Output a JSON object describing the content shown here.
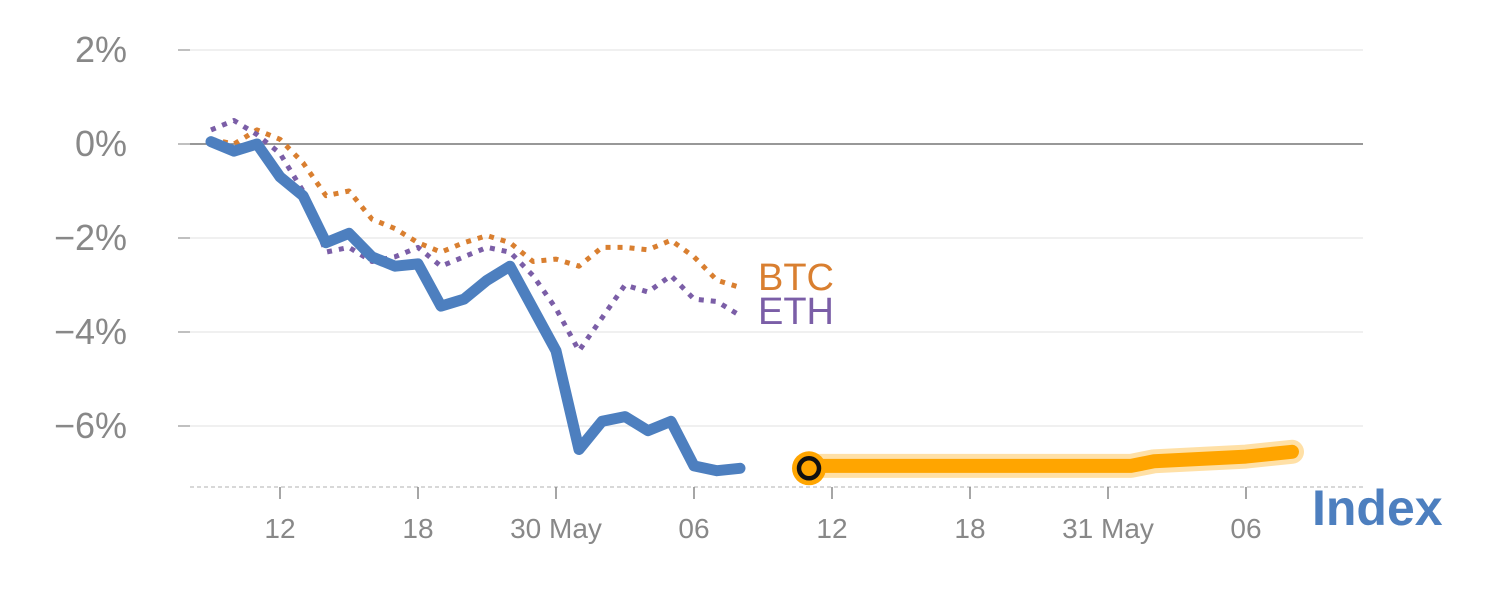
{
  "chart_data": {
    "type": "line",
    "ylim": [
      -7.3,
      2
    ],
    "y_ticks": [
      {
        "value": 2,
        "label": "2%"
      },
      {
        "value": 0,
        "label": "0%"
      },
      {
        "value": -2,
        "label": "−2%"
      },
      {
        "value": -4,
        "label": "−4%"
      },
      {
        "value": -6,
        "label": "−6%"
      }
    ],
    "x_ticks": [
      {
        "x": 3,
        "label": "12"
      },
      {
        "x": 9,
        "label": "18"
      },
      {
        "x": 15,
        "label": "30 May"
      },
      {
        "x": 21,
        "label": "06"
      },
      {
        "x": 27,
        "label": "12"
      },
      {
        "x": 33,
        "label": "18"
      },
      {
        "x": 39,
        "label": "31 May"
      },
      {
        "x": 45,
        "label": "06"
      }
    ],
    "xlim": [
      -4,
      47.5
    ],
    "series": [
      {
        "name": "BTC",
        "color": "#d97f30",
        "style": "dotted",
        "x": [
          0,
          1,
          2,
          3,
          4,
          5,
          6,
          7,
          8,
          9,
          10,
          11,
          12,
          13,
          14,
          15,
          16,
          17,
          18,
          19,
          20,
          21,
          22,
          23
        ],
        "values": [
          0.1,
          0.0,
          0.3,
          0.1,
          -0.4,
          -1.1,
          -1.0,
          -1.6,
          -1.8,
          -2.1,
          -2.3,
          -2.1,
          -1.95,
          -2.1,
          -2.5,
          -2.45,
          -2.6,
          -2.2,
          -2.2,
          -2.25,
          -2.05,
          -2.4,
          -2.9,
          -3.05
        ]
      },
      {
        "name": "ETH",
        "color": "#7b5ea7",
        "style": "dotted",
        "x": [
          0,
          1,
          2,
          3,
          4,
          5,
          6,
          7,
          8,
          9,
          10,
          11,
          12,
          13,
          14,
          15,
          16,
          17,
          18,
          19,
          20,
          21,
          22,
          23
        ],
        "values": [
          0.3,
          0.5,
          0.2,
          -0.2,
          -1.0,
          -2.3,
          -2.2,
          -2.5,
          -2.4,
          -2.2,
          -2.6,
          -2.4,
          -2.2,
          -2.3,
          -2.8,
          -3.5,
          -4.4,
          -3.7,
          -3.0,
          -3.15,
          -2.8,
          -3.3,
          -3.35,
          -3.65
        ]
      },
      {
        "name": "Index",
        "color": "#4d7fbf",
        "style": "solid",
        "x": [
          0,
          1,
          2,
          3,
          4,
          5,
          6,
          7,
          8,
          9,
          10,
          11,
          12,
          13,
          14,
          15,
          16,
          17,
          18,
          19,
          20,
          21,
          22,
          23
        ],
        "values": [
          0.05,
          -0.15,
          0.0,
          -0.7,
          -1.1,
          -2.1,
          -1.9,
          -2.4,
          -2.6,
          -2.55,
          -3.45,
          -3.3,
          -2.9,
          -2.6,
          -3.5,
          -4.4,
          -6.5,
          -5.9,
          -5.8,
          -6.1,
          -5.9,
          -6.85,
          -6.95,
          -6.9
        ]
      }
    ],
    "projection": {
      "color": "#ffa500",
      "x": [
        26,
        30,
        35,
        40,
        41,
        45,
        47
      ],
      "values": [
        -6.85,
        -6.85,
        -6.85,
        -6.85,
        -6.75,
        -6.65,
        -6.55
      ]
    },
    "marker": {
      "x": 26,
      "value": -6.9,
      "color": "#ffa500"
    },
    "zero_line": 0,
    "grid": true,
    "labels": {
      "btc": "BTC",
      "eth": "ETH",
      "index": "Index"
    }
  }
}
